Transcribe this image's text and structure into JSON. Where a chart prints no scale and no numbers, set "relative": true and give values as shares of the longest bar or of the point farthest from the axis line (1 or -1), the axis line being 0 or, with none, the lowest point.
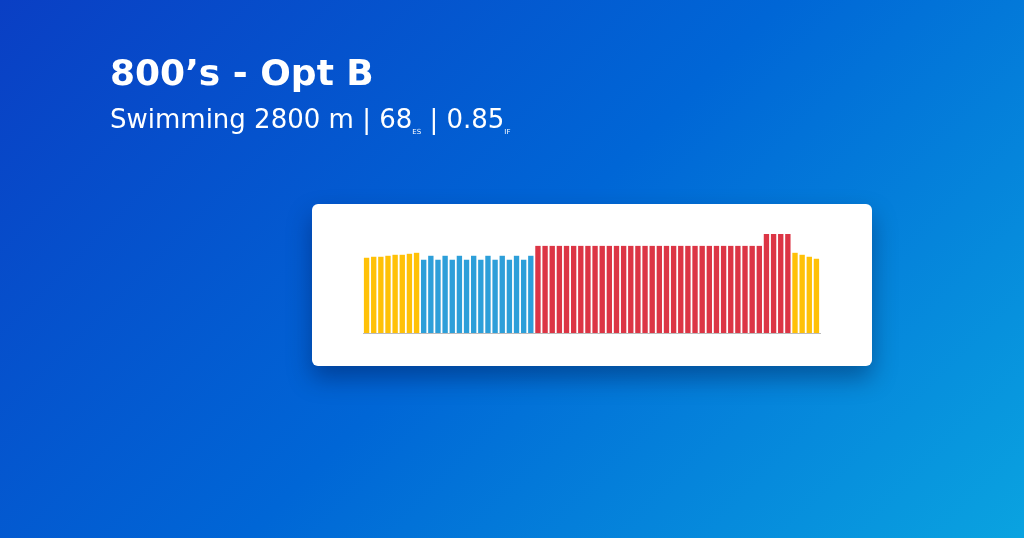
{
  "chart_data": {
    "type": "bar",
    "title": "800’s - Opt B",
    "subtitle": "Swimming 2800 m | 68$_{ES}$ | 0.85$_{IF}$",
    "relative": true,
    "categories": [
      null,
      null,
      null,
      null,
      null,
      null,
      null,
      null,
      null,
      null,
      null,
      null,
      null,
      null,
      null,
      null,
      null,
      null,
      null,
      null,
      null,
      null,
      null,
      null,
      null,
      null,
      null,
      null,
      null,
      null,
      null,
      null,
      null,
      null,
      null,
      null,
      null,
      null,
      null,
      null,
      null,
      null,
      null,
      null,
      null,
      null,
      null,
      null,
      null,
      null,
      null,
      null,
      null,
      null,
      null,
      null,
      null,
      null,
      null,
      null,
      null,
      null,
      null,
      null
    ],
    "values": [
      0.76,
      0.77,
      0.77,
      0.78,
      0.79,
      0.79,
      0.8,
      0.81,
      0.74,
      0.78,
      0.74,
      0.78,
      0.74,
      0.78,
      0.74,
      0.78,
      0.74,
      0.78,
      0.74,
      0.78,
      0.74,
      0.78,
      0.74,
      0.78,
      0.88,
      0.88,
      0.88,
      0.88,
      0.88,
      0.88,
      0.88,
      0.88,
      0.88,
      0.88,
      0.88,
      0.88,
      0.88,
      0.88,
      0.88,
      0.88,
      0.88,
      0.88,
      0.88,
      0.88,
      0.88,
      0.88,
      0.88,
      0.88,
      0.88,
      0.88,
      0.88,
      0.88,
      0.88,
      0.88,
      0.88,
      0.88,
      1,
      1,
      1,
      1,
      0.81,
      0.79,
      0.77,
      0.75
    ],
    "colors": [
      "#ffc107",
      "#ffc107",
      "#ffc107",
      "#ffc107",
      "#ffc107",
      "#ffc107",
      "#ffc107",
      "#ffc107",
      "#2d9fd9",
      "#2d9fd9",
      "#2d9fd9",
      "#2d9fd9",
      "#2d9fd9",
      "#2d9fd9",
      "#2d9fd9",
      "#2d9fd9",
      "#2d9fd9",
      "#2d9fd9",
      "#2d9fd9",
      "#2d9fd9",
      "#2d9fd9",
      "#2d9fd9",
      "#2d9fd9",
      "#2d9fd9",
      "#dc3545",
      "#dc3545",
      "#dc3545",
      "#dc3545",
      "#dc3545",
      "#dc3545",
      "#dc3545",
      "#dc3545",
      "#dc3545",
      "#dc3545",
      "#dc3545",
      "#dc3545",
      "#dc3545",
      "#dc3545",
      "#dc3545",
      "#dc3545",
      "#dc3545",
      "#dc3545",
      "#dc3545",
      "#dc3545",
      "#dc3545",
      "#dc3545",
      "#dc3545",
      "#dc3545",
      "#dc3545",
      "#dc3545",
      "#dc3545",
      "#dc3545",
      "#dc3545",
      "#dc3545",
      "#dc3545",
      "#dc3545",
      "#dc3545",
      "#dc3545",
      "#dc3545",
      "#dc3545",
      "#ffc107",
      "#ffc107",
      "#ffc107",
      "#ffc107"
    ]
  }
}
